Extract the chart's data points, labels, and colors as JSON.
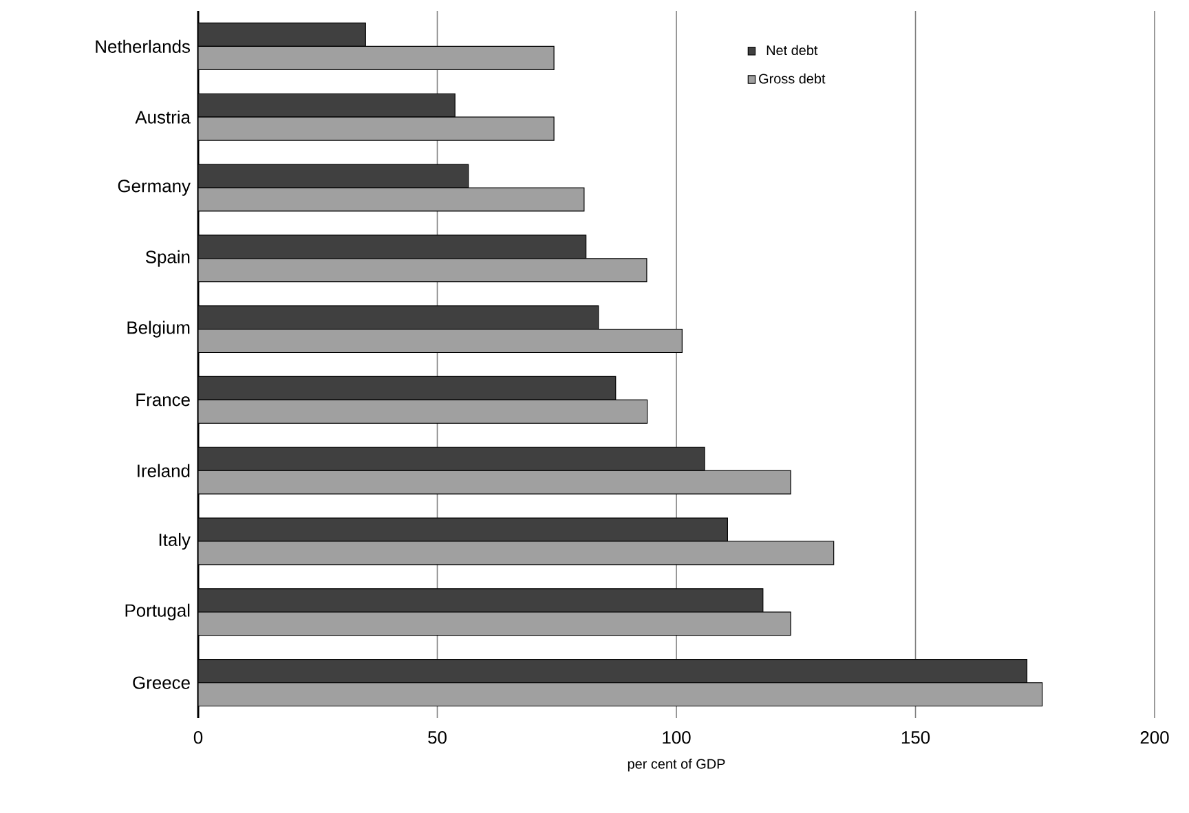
{
  "chart_data": {
    "type": "bar",
    "orientation": "horizontal",
    "xlabel": "per cent of GDP",
    "categories": [
      "Netherlands",
      "Austria",
      "Germany",
      "Spain",
      "Belgium",
      "France",
      "Ireland",
      "Italy",
      "Portugal",
      "Greece"
    ],
    "series": [
      {
        "name": "Net debt",
        "color": "#404040",
        "values": [
          35.0,
          53.7,
          56.5,
          81.1,
          83.7,
          87.3,
          105.9,
          110.7,
          118.1,
          173.3
        ]
      },
      {
        "name": "Gross debt",
        "color": "#a0a0a0",
        "values": [
          74.4,
          74.4,
          80.7,
          93.8,
          101.2,
          93.9,
          123.9,
          132.9,
          123.9,
          176.5
        ]
      }
    ],
    "xlim": [
      0,
      200
    ],
    "xticks": [
      0,
      50,
      100,
      150,
      200
    ],
    "grid": "x",
    "legend": "top right"
  }
}
